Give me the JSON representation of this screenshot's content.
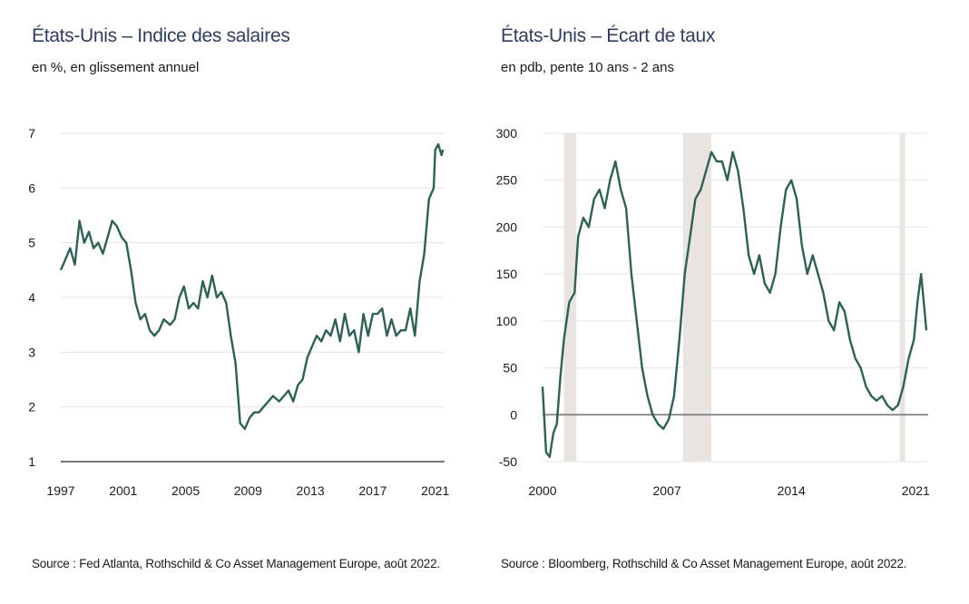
{
  "charts": {
    "left": {
      "title": "États-Unis – Indice des salaires",
      "subtitle": "en %, en glissement annuel",
      "source": "Source : Fed Atlanta, Rothschild & Co Asset Management Europe, août 2022."
    },
    "right": {
      "title": "États-Unis – Écart de taux",
      "subtitle": "en pdb, pente 10 ans - 2 ans",
      "source": "Source : Bloomberg, Rothschild & Co Asset Management Europe, août 2022."
    }
  },
  "colors": {
    "line": "#2f5f55",
    "grid": "#e6e6e6",
    "axis": "#555555",
    "recession": "#e9e4df",
    "title": "#2f3e5e"
  },
  "chart_data": [
    {
      "type": "line",
      "title": "États-Unis – Indice des salaires",
      "subtitle": "en %, en glissement annuel",
      "xlabel": "",
      "ylabel": "",
      "xlim": [
        1997,
        2021.6
      ],
      "ylim": [
        1,
        7
      ],
      "yticks": [
        1,
        2,
        3,
        4,
        5,
        6,
        7
      ],
      "xticks": [
        1997,
        2001,
        2005,
        2009,
        2013,
        2017,
        2021
      ],
      "grid": true,
      "series": [
        {
          "name": "Indice des salaires",
          "x": [
            1997.0,
            1997.3,
            1997.6,
            1997.9,
            1998.2,
            1998.5,
            1998.8,
            1999.1,
            1999.4,
            1999.7,
            2000.0,
            2000.3,
            2000.6,
            2000.9,
            2001.2,
            2001.5,
            2001.8,
            2002.1,
            2002.4,
            2002.7,
            2003.0,
            2003.3,
            2003.6,
            2004.0,
            2004.3,
            2004.6,
            2004.9,
            2005.2,
            2005.5,
            2005.8,
            2006.1,
            2006.4,
            2006.7,
            2007.0,
            2007.3,
            2007.6,
            2007.9,
            2008.2,
            2008.5,
            2008.8,
            2009.1,
            2009.4,
            2009.7,
            2010.0,
            2010.3,
            2010.6,
            2011.0,
            2011.3,
            2011.6,
            2011.9,
            2012.2,
            2012.5,
            2012.8,
            2013.1,
            2013.4,
            2013.7,
            2014.0,
            2014.3,
            2014.6,
            2014.9,
            2015.2,
            2015.5,
            2015.8,
            2016.1,
            2016.4,
            2016.7,
            2017.0,
            2017.3,
            2017.6,
            2017.9,
            2018.2,
            2018.5,
            2018.8,
            2019.1,
            2019.4,
            2019.7,
            2020.0,
            2020.3,
            2020.6,
            2020.9,
            2021.0,
            2021.2,
            2021.4,
            2021.5
          ],
          "values": [
            4.5,
            4.7,
            4.9,
            4.6,
            5.4,
            5.0,
            5.2,
            4.9,
            5.0,
            4.8,
            5.1,
            5.4,
            5.3,
            5.1,
            5.0,
            4.5,
            3.9,
            3.6,
            3.7,
            3.4,
            3.3,
            3.4,
            3.6,
            3.5,
            3.6,
            4.0,
            4.2,
            3.8,
            3.9,
            3.8,
            4.3,
            4.0,
            4.4,
            4.0,
            4.1,
            3.9,
            3.3,
            2.8,
            1.7,
            1.6,
            1.8,
            1.9,
            1.9,
            2.0,
            2.1,
            2.2,
            2.1,
            2.2,
            2.3,
            2.1,
            2.4,
            2.5,
            2.9,
            3.1,
            3.3,
            3.2,
            3.4,
            3.3,
            3.6,
            3.2,
            3.7,
            3.3,
            3.4,
            3.0,
            3.7,
            3.3,
            3.7,
            3.7,
            3.8,
            3.3,
            3.6,
            3.3,
            3.4,
            3.4,
            3.8,
            3.3,
            4.3,
            4.8,
            5.8,
            6.0,
            6.7,
            6.8,
            6.6,
            6.7
          ]
        }
      ]
    },
    {
      "type": "line",
      "title": "États-Unis – Écart de taux",
      "subtitle": "en pdb, pente 10 ans - 2 ans",
      "xlabel": "",
      "ylabel": "",
      "xlim": [
        2000,
        2021.7
      ],
      "ylim": [
        -50,
        300
      ],
      "yticks": [
        -50,
        0,
        50,
        100,
        150,
        200,
        250,
        300
      ],
      "xticks": [
        2000,
        2007,
        2014,
        2021
      ],
      "grid": true,
      "recessions": [
        [
          2001.2,
          2001.9
        ],
        [
          2007.9,
          2009.5
        ],
        [
          2020.1,
          2020.4
        ]
      ],
      "series": [
        {
          "name": "Écart 10 ans - 2 ans",
          "x": [
            2000.0,
            2000.2,
            2000.4,
            2000.6,
            2000.8,
            2001.0,
            2001.2,
            2001.5,
            2001.8,
            2002.0,
            2002.3,
            2002.6,
            2002.9,
            2003.2,
            2003.5,
            2003.8,
            2004.1,
            2004.4,
            2004.7,
            2005.0,
            2005.3,
            2005.6,
            2005.9,
            2006.2,
            2006.5,
            2006.8,
            2007.1,
            2007.4,
            2007.7,
            2008.0,
            2008.3,
            2008.6,
            2008.9,
            2009.2,
            2009.5,
            2009.8,
            2010.1,
            2010.4,
            2010.7,
            2011.0,
            2011.3,
            2011.6,
            2011.9,
            2012.2,
            2012.5,
            2012.8,
            2013.1,
            2013.4,
            2013.7,
            2014.0,
            2014.3,
            2014.6,
            2014.9,
            2015.2,
            2015.5,
            2015.8,
            2016.1,
            2016.4,
            2016.7,
            2017.0,
            2017.3,
            2017.6,
            2017.9,
            2018.2,
            2018.5,
            2018.8,
            2019.1,
            2019.4,
            2019.7,
            2020.0,
            2020.3,
            2020.6,
            2020.9,
            2021.1,
            2021.3,
            2021.5,
            2021.6
          ],
          "values": [
            30,
            -40,
            -45,
            -20,
            -10,
            40,
            80,
            120,
            130,
            190,
            210,
            200,
            230,
            240,
            220,
            250,
            270,
            240,
            220,
            150,
            100,
            50,
            20,
            0,
            -10,
            -15,
            -5,
            20,
            80,
            150,
            190,
            230,
            240,
            260,
            280,
            270,
            270,
            250,
            280,
            260,
            220,
            170,
            150,
            170,
            140,
            130,
            150,
            200,
            240,
            250,
            230,
            180,
            150,
            170,
            150,
            130,
            100,
            90,
            120,
            110,
            80,
            60,
            50,
            30,
            20,
            15,
            20,
            10,
            5,
            10,
            30,
            60,
            80,
            120,
            150,
            110,
            90
          ]
        }
      ]
    }
  ]
}
